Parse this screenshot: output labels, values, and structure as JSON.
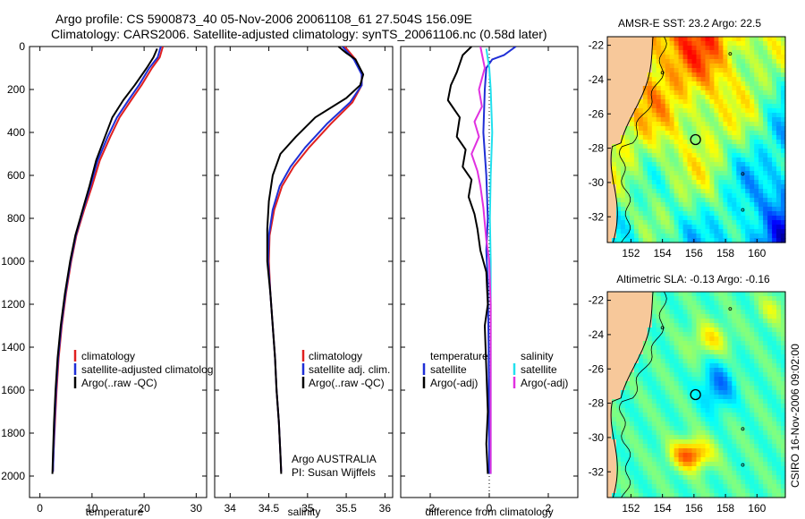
{
  "header": {
    "line1": "Argo profile: CS 5900873_40 05-Nov-2006 20061108_61 27.504S 156.09E",
    "line2": "Climatology: CARS2006. Satellite-adjusted climatology: synTS_20061106.nc (0.58d later)"
  },
  "credit": "CSIRO 16-Nov-2006 09:02:00",
  "colors": {
    "clim": "#e02020",
    "sat": "#1f2fd6",
    "argo": "#000000",
    "sat_s": "#22e0ee",
    "argo_s": "#e030e0",
    "land": "#f7c89a"
  },
  "chart_data": [
    {
      "type": "line",
      "title": "",
      "xlabel": "temperature",
      "ylabel": "",
      "xlim": [
        -2,
        32
      ],
      "ylim": [
        2100,
        0
      ],
      "xticks": [
        0,
        10,
        20,
        30
      ],
      "yticks": [
        0,
        200,
        400,
        600,
        800,
        1000,
        1200,
        1400,
        1600,
        1800,
        2000
      ],
      "legend": [
        "climatology",
        "satellite-adjusted climatolog",
        "Argo(..raw -QC)"
      ],
      "series": [
        {
          "name": "climatology",
          "color": "clim",
          "points": [
            [
              23.6,
              0
            ],
            [
              23.0,
              50
            ],
            [
              21.5,
              100
            ],
            [
              19.5,
              180
            ],
            [
              17.5,
              250
            ],
            [
              15.3,
              330
            ],
            [
              13.5,
              420
            ],
            [
              11.5,
              530
            ],
            [
              10.0,
              650
            ],
            [
              8.5,
              760
            ],
            [
              7.0,
              880
            ],
            [
              6.0,
              1000
            ],
            [
              5.0,
              1150
            ],
            [
              4.2,
              1300
            ],
            [
              3.6,
              1450
            ],
            [
              3.2,
              1600
            ],
            [
              2.9,
              1750
            ],
            [
              2.6,
              1900
            ],
            [
              2.5,
              1980
            ]
          ]
        },
        {
          "name": "satellite-adjusted climatology",
          "color": "sat",
          "points": [
            [
              23.2,
              0
            ],
            [
              22.6,
              50
            ],
            [
              21.0,
              100
            ],
            [
              19.0,
              180
            ],
            [
              17.0,
              250
            ],
            [
              14.8,
              330
            ],
            [
              13.0,
              420
            ],
            [
              11.1,
              530
            ],
            [
              9.7,
              650
            ],
            [
              8.3,
              760
            ],
            [
              6.9,
              880
            ],
            [
              5.9,
              1000
            ],
            [
              4.9,
              1150
            ],
            [
              4.1,
              1300
            ],
            [
              3.5,
              1450
            ],
            [
              3.1,
              1600
            ],
            [
              2.8,
              1750
            ],
            [
              2.6,
              1900
            ],
            [
              2.5,
              1980
            ]
          ]
        },
        {
          "name": "Argo",
          "color": "argo",
          "points": [
            [
              22.5,
              10
            ],
            [
              21.8,
              50
            ],
            [
              20.5,
              100
            ],
            [
              18.2,
              180
            ],
            [
              16.0,
              250
            ],
            [
              13.9,
              330
            ],
            [
              12.5,
              420
            ],
            [
              10.8,
              530
            ],
            [
              9.5,
              650
            ],
            [
              8.2,
              760
            ],
            [
              6.8,
              880
            ],
            [
              5.8,
              1000
            ],
            [
              4.8,
              1150
            ],
            [
              4.0,
              1300
            ],
            [
              3.4,
              1450
            ],
            [
              3.0,
              1600
            ],
            [
              2.7,
              1750
            ],
            [
              2.5,
              1900
            ],
            [
              2.4,
              1990
            ]
          ]
        }
      ]
    },
    {
      "type": "line",
      "title": "",
      "xlabel": "salinity",
      "ylabel": "",
      "xlim": [
        33.8,
        36.1
      ],
      "ylim": [
        2100,
        0
      ],
      "xticks": [
        34,
        34.5,
        35,
        35.5,
        36
      ],
      "yticks": [],
      "legend": [
        "climatology",
        "satellite adj. clim.",
        "Argo(..raw -QC)"
      ],
      "annotation": [
        "Argo AUSTRALIA",
        "PI: Susan Wijffels"
      ],
      "series": [
        {
          "name": "climatology",
          "color": "clim",
          "points": [
            [
              35.48,
              0
            ],
            [
              35.62,
              60
            ],
            [
              35.7,
              130
            ],
            [
              35.7,
              180
            ],
            [
              35.58,
              260
            ],
            [
              35.3,
              360
            ],
            [
              35.02,
              470
            ],
            [
              34.82,
              560
            ],
            [
              34.67,
              650
            ],
            [
              34.57,
              760
            ],
            [
              34.51,
              880
            ],
            [
              34.5,
              1000
            ],
            [
              34.52,
              1150
            ],
            [
              34.55,
              1300
            ],
            [
              34.58,
              1450
            ],
            [
              34.6,
              1600
            ],
            [
              34.63,
              1750
            ],
            [
              34.65,
              1900
            ],
            [
              34.66,
              1980
            ]
          ]
        },
        {
          "name": "satellite adj. clim.",
          "color": "sat",
          "points": [
            [
              35.45,
              0
            ],
            [
              35.6,
              60
            ],
            [
              35.7,
              130
            ],
            [
              35.7,
              180
            ],
            [
              35.55,
              260
            ],
            [
              35.25,
              360
            ],
            [
              34.97,
              470
            ],
            [
              34.78,
              560
            ],
            [
              34.64,
              650
            ],
            [
              34.55,
              760
            ],
            [
              34.5,
              880
            ],
            [
              34.49,
              1000
            ],
            [
              34.52,
              1150
            ],
            [
              34.55,
              1300
            ],
            [
              34.58,
              1450
            ],
            [
              34.6,
              1600
            ],
            [
              34.63,
              1750
            ],
            [
              34.65,
              1900
            ],
            [
              34.66,
              1980
            ]
          ]
        },
        {
          "name": "Argo",
          "color": "argo",
          "points": [
            [
              35.4,
              0
            ],
            [
              35.5,
              30
            ],
            [
              35.62,
              60
            ],
            [
              35.72,
              130
            ],
            [
              35.68,
              180
            ],
            [
              35.5,
              240
            ],
            [
              35.1,
              330
            ],
            [
              34.85,
              420
            ],
            [
              34.65,
              500
            ],
            [
              34.55,
              600
            ],
            [
              34.5,
              720
            ],
            [
              34.48,
              850
            ],
            [
              34.48,
              1000
            ],
            [
              34.52,
              1150
            ],
            [
              34.55,
              1300
            ],
            [
              34.58,
              1450
            ],
            [
              34.6,
              1600
            ],
            [
              34.63,
              1750
            ],
            [
              34.65,
              1900
            ],
            [
              34.66,
              1990
            ]
          ]
        }
      ]
    },
    {
      "type": "line",
      "title": "",
      "xlabel": "difference from climatology",
      "ylabel": "",
      "xlim": [
        -3,
        3
      ],
      "ylim": [
        2100,
        0
      ],
      "xticks": [
        -2,
        0,
        2
      ],
      "yticks": [],
      "legend": [
        "temperature",
        "satellite",
        "Argo(-adj)",
        "salinity",
        "satellite",
        "Argo(-adj)"
      ],
      "series": [
        {
          "name": "temperature satellite",
          "color": "sat",
          "points": [
            [
              0.9,
              0
            ],
            [
              0.5,
              40
            ],
            [
              0.1,
              60
            ],
            [
              -0.1,
              100
            ],
            [
              -0.15,
              200
            ],
            [
              -0.2,
              400
            ],
            [
              -0.1,
              600
            ],
            [
              -0.05,
              800
            ],
            [
              -0.1,
              950
            ],
            [
              -0.05,
              1100
            ],
            [
              -0.02,
              1400
            ],
            [
              0,
              1990
            ]
          ]
        },
        {
          "name": "temperature Argo(-adj)",
          "color": "argo",
          "points": [
            [
              -0.6,
              0
            ],
            [
              -0.9,
              40
            ],
            [
              -1.1,
              120
            ],
            [
              -1.3,
              180
            ],
            [
              -1.4,
              250
            ],
            [
              -1.0,
              330
            ],
            [
              -1.1,
              420
            ],
            [
              -0.8,
              480
            ],
            [
              -0.9,
              560
            ],
            [
              -0.6,
              620
            ],
            [
              -0.7,
              700
            ],
            [
              -0.5,
              780
            ],
            [
              -0.4,
              850
            ],
            [
              -0.3,
              950
            ],
            [
              -0.1,
              1050
            ],
            [
              -0.05,
              1200
            ],
            [
              -0.15,
              1300
            ],
            [
              -0.1,
              1500
            ],
            [
              -0.05,
              1700
            ],
            [
              -0.1,
              1850
            ],
            [
              -0.05,
              1990
            ]
          ]
        },
        {
          "name": "salinity satellite",
          "color": "sat_s",
          "points": [
            [
              -0.1,
              10
            ],
            [
              0.0,
              100
            ],
            [
              0.05,
              200
            ],
            [
              0.1,
              400
            ],
            [
              0.05,
              600
            ],
            [
              0.02,
              800
            ],
            [
              0.05,
              1000
            ],
            [
              0.05,
              1400
            ],
            [
              0.05,
              1990
            ]
          ]
        },
        {
          "name": "salinity Argo(-adj)",
          "color": "argo_s",
          "points": [
            [
              -0.3,
              0
            ],
            [
              -0.15,
              100
            ],
            [
              -0.35,
              200
            ],
            [
              -0.25,
              280
            ],
            [
              -0.5,
              350
            ],
            [
              -0.35,
              420
            ],
            [
              -0.6,
              500
            ],
            [
              -0.4,
              580
            ],
            [
              -0.3,
              650
            ],
            [
              -0.2,
              750
            ],
            [
              -0.1,
              900
            ],
            [
              0.0,
              1000
            ],
            [
              0.05,
              1200
            ],
            [
              0.05,
              1500
            ],
            [
              0.05,
              1800
            ],
            [
              0.05,
              1990
            ]
          ]
        }
      ]
    },
    {
      "type": "heatmap",
      "title": "AMSR-E SST: 23.2  Argo: 22.5",
      "xticks": [
        152,
        154,
        156,
        158,
        160
      ],
      "yticks": [
        -22,
        -24,
        -26,
        -28,
        -30,
        -32
      ],
      "xlim": [
        150.5,
        161.8
      ],
      "ylim": [
        -33.5,
        -21.5
      ],
      "marker": [
        156.1,
        -27.5
      ]
    },
    {
      "type": "heatmap",
      "title": "Altimetric SLA: -0.13  Argo: -0.16",
      "xticks": [
        152,
        154,
        156,
        158,
        160
      ],
      "yticks": [
        -22,
        -24,
        -26,
        -28,
        -30,
        -32
      ],
      "xlim": [
        150.5,
        161.8
      ],
      "ylim": [
        -33.5,
        -21.5
      ],
      "marker": [
        156.1,
        -27.5
      ]
    }
  ]
}
